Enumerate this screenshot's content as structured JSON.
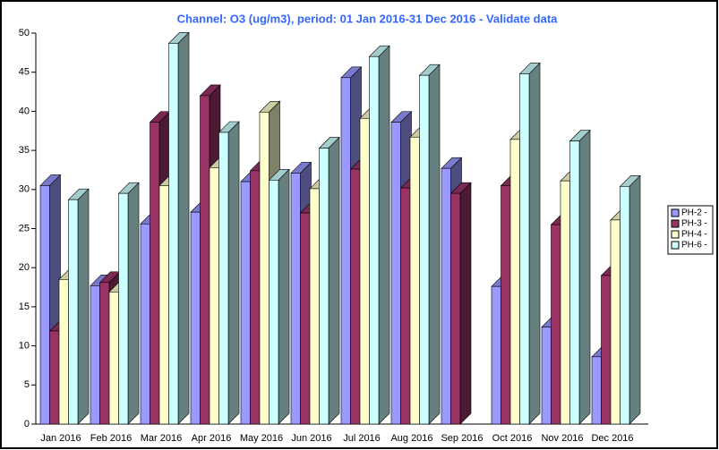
{
  "chart_data": {
    "type": "bar3d",
    "title": "Channel: O3 (ug/m3), period: 01 Jan 2016-31 Dec 2016 - Validate data",
    "categories": [
      "Jan 2016",
      "Feb 2016",
      "Mar 2016",
      "Apr 2016",
      "May 2016",
      "Jun 2016",
      "Jul 2016",
      "Aug 2016",
      "Sep 2016",
      "Oct 2016",
      "Nov 2016",
      "Dec 2016"
    ],
    "series": [
      {
        "name": "PH-2 -",
        "color": "#9999ff",
        "values": [
          30.5,
          17.7,
          25.6,
          27.1,
          31.0,
          32.1,
          44.3,
          38.6,
          32.7,
          17.6,
          12.4,
          8.6
        ]
      },
      {
        "name": "PH-3 -",
        "color": "#993366",
        "values": [
          11.9,
          18.1,
          38.6,
          42.0,
          32.4,
          27.0,
          32.6,
          30.2,
          29.5,
          30.5,
          25.5,
          19.0
        ]
      },
      {
        "name": "PH-4 -",
        "color": "#ffffcc",
        "values": [
          18.5,
          16.9,
          30.5,
          32.8,
          39.9,
          30.1,
          39.1,
          36.7,
          null,
          36.4,
          31.1,
          26.1
        ]
      },
      {
        "name": "PH-6 -",
        "color": "#ccffff",
        "values": [
          28.7,
          29.5,
          48.7,
          37.3,
          31.2,
          35.3,
          47.0,
          44.6,
          null,
          44.8,
          36.2,
          30.4
        ]
      }
    ],
    "ylim": [
      0,
      50
    ],
    "yticks": [
      0,
      5,
      10,
      15,
      20,
      25,
      30,
      35,
      40,
      45,
      50
    ],
    "legend": "right"
  }
}
